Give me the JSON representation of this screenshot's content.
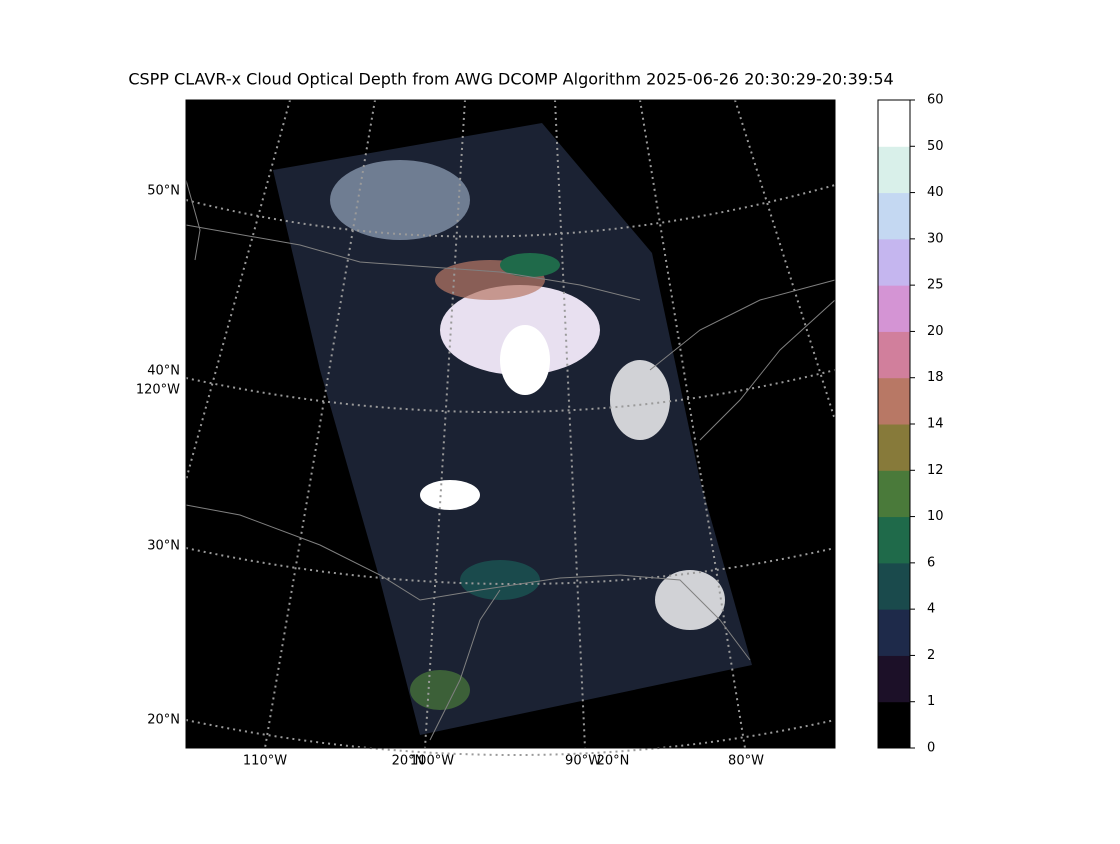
{
  "title": "CSPP CLAVR-x Cloud Optical Depth from AWG DCOMP Algorithm 2025-06-26 20:30:29-20:39:54",
  "map": {
    "lat_labels": [
      "50°N",
      "40°N",
      "30°N",
      "20°N"
    ],
    "lon_labels_left": [
      "120°W"
    ],
    "lon_labels_bottom": [
      "110°W",
      "20°N",
      "100°W",
      "90°W",
      "20°N",
      "80°W"
    ]
  },
  "colorbar": {
    "boundaries": [
      0,
      1,
      2,
      4,
      6,
      10,
      12,
      14,
      18,
      20,
      25,
      30,
      40,
      50,
      60
    ],
    "colors": [
      "#000000",
      "#1c1028",
      "#1e2a4a",
      "#1a4a4c",
      "#1f6a4a",
      "#4a7a3a",
      "#877a3a",
      "#b87865",
      "#d17f9c",
      "#d494d4",
      "#c5b6ef",
      "#c4d8f2",
      "#d9f0ea",
      "#ffffff"
    ]
  }
}
